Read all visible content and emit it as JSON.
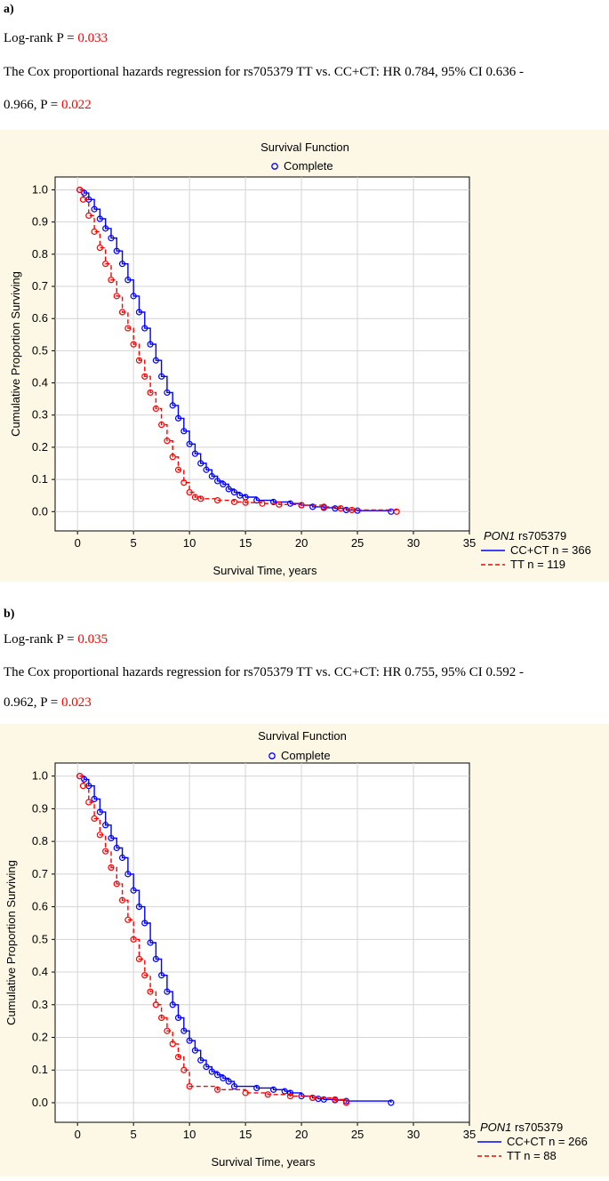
{
  "panels": [
    {
      "label": "a)",
      "logrank_prefix": "Log-rank P = ",
      "logrank_p": "0.033",
      "cox_line1": "The Cox proportional hazards regression for rs705379 TT vs. CC+CT: HR 0.784, 95% CI 0.636 -",
      "cox_line2_prefix": "0.966, P = ",
      "cox_p": "0.022"
    },
    {
      "label": "b)",
      "logrank_prefix": "Log-rank P = ",
      "logrank_p": "0.035",
      "cox_line1": "The Cox proportional hazards regression for rs705379 TT vs. CC+CT: HR 0.755, 95% CI 0.592 -",
      "cox_line2_prefix": "0.962, P = ",
      "cox_p": "0.023"
    }
  ],
  "colors": {
    "cc_ct": "#0000ff",
    "tt": "#ff0000",
    "panel_bg": "#fdf7e5"
  },
  "chart_data": [
    {
      "type": "line",
      "step": true,
      "title": "Survival Function",
      "legend_top": "Complete",
      "legend_title_italic": "PON1",
      "legend_title_rest": " rs705379",
      "xlabel": "Survival Time, years",
      "ylabel": "Cumulative Proportion Surviving",
      "xlim": [
        -2,
        35
      ],
      "ylim": [
        -0.06,
        1.04
      ],
      "xticks": [
        0,
        5,
        10,
        15,
        20,
        25,
        30,
        35
      ],
      "yticks": [
        0.0,
        0.1,
        0.2,
        0.3,
        0.4,
        0.5,
        0.6,
        0.7,
        0.8,
        0.9,
        1.0
      ],
      "grid": true,
      "series": [
        {
          "name": "CC+CT n = 366",
          "style": "solid",
          "x": [
            0.2,
            0.6,
            1.0,
            1.5,
            2.0,
            2.5,
            3.0,
            3.5,
            4.0,
            4.5,
            5.0,
            5.5,
            6.0,
            6.5,
            7.0,
            7.5,
            8.0,
            8.5,
            9.0,
            9.5,
            10.0,
            10.5,
            11.0,
            11.5,
            12.0,
            12.5,
            13.0,
            13.5,
            14.0,
            14.5,
            15.0,
            16.0,
            17.5,
            19.0,
            20.0,
            21.0,
            22.0,
            23.0,
            24.0,
            25.0,
            28.0
          ],
          "y": [
            1.0,
            0.99,
            0.97,
            0.94,
            0.91,
            0.88,
            0.85,
            0.81,
            0.77,
            0.72,
            0.67,
            0.62,
            0.57,
            0.52,
            0.47,
            0.42,
            0.37,
            0.33,
            0.29,
            0.25,
            0.21,
            0.18,
            0.15,
            0.13,
            0.11,
            0.095,
            0.085,
            0.07,
            0.06,
            0.05,
            0.045,
            0.035,
            0.03,
            0.025,
            0.02,
            0.015,
            0.012,
            0.01,
            0.005,
            0.003,
            0.0
          ]
        },
        {
          "name": "TT n = 119",
          "style": "dashed",
          "x": [
            0.2,
            0.5,
            1.0,
            1.5,
            2.0,
            2.5,
            3.0,
            3.5,
            4.0,
            4.5,
            5.0,
            5.5,
            6.0,
            6.5,
            7.0,
            7.5,
            8.0,
            8.5,
            9.0,
            9.5,
            10.0,
            10.5,
            11.0,
            12.5,
            14.0,
            15.0,
            16.5,
            18.0,
            20.0,
            22.0,
            23.5,
            24.5,
            28.5
          ],
          "y": [
            1.0,
            0.97,
            0.92,
            0.87,
            0.82,
            0.77,
            0.72,
            0.67,
            0.62,
            0.57,
            0.52,
            0.47,
            0.42,
            0.37,
            0.32,
            0.27,
            0.22,
            0.17,
            0.13,
            0.09,
            0.06,
            0.045,
            0.04,
            0.035,
            0.03,
            0.028,
            0.025,
            0.022,
            0.02,
            0.015,
            0.01,
            0.005,
            0.0
          ]
        }
      ]
    },
    {
      "type": "line",
      "step": true,
      "title": "Survival Function",
      "legend_top": "Complete",
      "legend_title_italic": "PON1",
      "legend_title_rest": " rs705379",
      "xlabel": "Survival Time, years",
      "ylabel": "Cumulative Proportion Surviving",
      "xlim": [
        -2,
        35
      ],
      "ylim": [
        -0.06,
        1.04
      ],
      "xticks": [
        0,
        5,
        10,
        15,
        20,
        25,
        30,
        35
      ],
      "yticks": [
        0.0,
        0.1,
        0.2,
        0.3,
        0.4,
        0.5,
        0.6,
        0.7,
        0.8,
        0.9,
        1.0
      ],
      "grid": true,
      "series": [
        {
          "name": "CC+CT n = 266",
          "style": "solid",
          "x": [
            0.2,
            0.6,
            1.0,
            1.5,
            2.0,
            2.5,
            3.0,
            3.5,
            4.0,
            4.5,
            5.0,
            5.5,
            6.0,
            6.5,
            7.0,
            7.5,
            8.0,
            8.5,
            9.0,
            9.5,
            10.0,
            10.5,
            11.0,
            11.5,
            12.0,
            12.5,
            13.0,
            13.5,
            14.0,
            16.0,
            17.5,
            18.5,
            19.0,
            20.0,
            21.0,
            21.5,
            22.0,
            23.0,
            24.0,
            28.0
          ],
          "y": [
            1.0,
            0.99,
            0.97,
            0.93,
            0.89,
            0.85,
            0.81,
            0.78,
            0.75,
            0.7,
            0.65,
            0.6,
            0.55,
            0.49,
            0.44,
            0.39,
            0.34,
            0.3,
            0.26,
            0.22,
            0.19,
            0.16,
            0.13,
            0.11,
            0.095,
            0.085,
            0.075,
            0.065,
            0.05,
            0.045,
            0.04,
            0.035,
            0.03,
            0.02,
            0.015,
            0.012,
            0.01,
            0.008,
            0.005,
            0.0
          ]
        },
        {
          "name": "TT n = 88",
          "style": "dashed",
          "x": [
            0.2,
            0.5,
            1.0,
            1.5,
            2.0,
            2.5,
            3.0,
            3.5,
            4.0,
            4.5,
            5.0,
            5.5,
            6.0,
            6.5,
            7.0,
            7.5,
            8.0,
            8.5,
            9.0,
            9.5,
            10.0,
            12.5,
            15.0,
            17.0,
            19.0,
            21.0,
            23.0,
            24.0
          ],
          "y": [
            1.0,
            0.97,
            0.92,
            0.87,
            0.82,
            0.77,
            0.72,
            0.67,
            0.62,
            0.56,
            0.5,
            0.44,
            0.39,
            0.34,
            0.3,
            0.26,
            0.22,
            0.18,
            0.14,
            0.1,
            0.05,
            0.04,
            0.03,
            0.025,
            0.02,
            0.015,
            0.01,
            0.0
          ]
        }
      ]
    }
  ]
}
